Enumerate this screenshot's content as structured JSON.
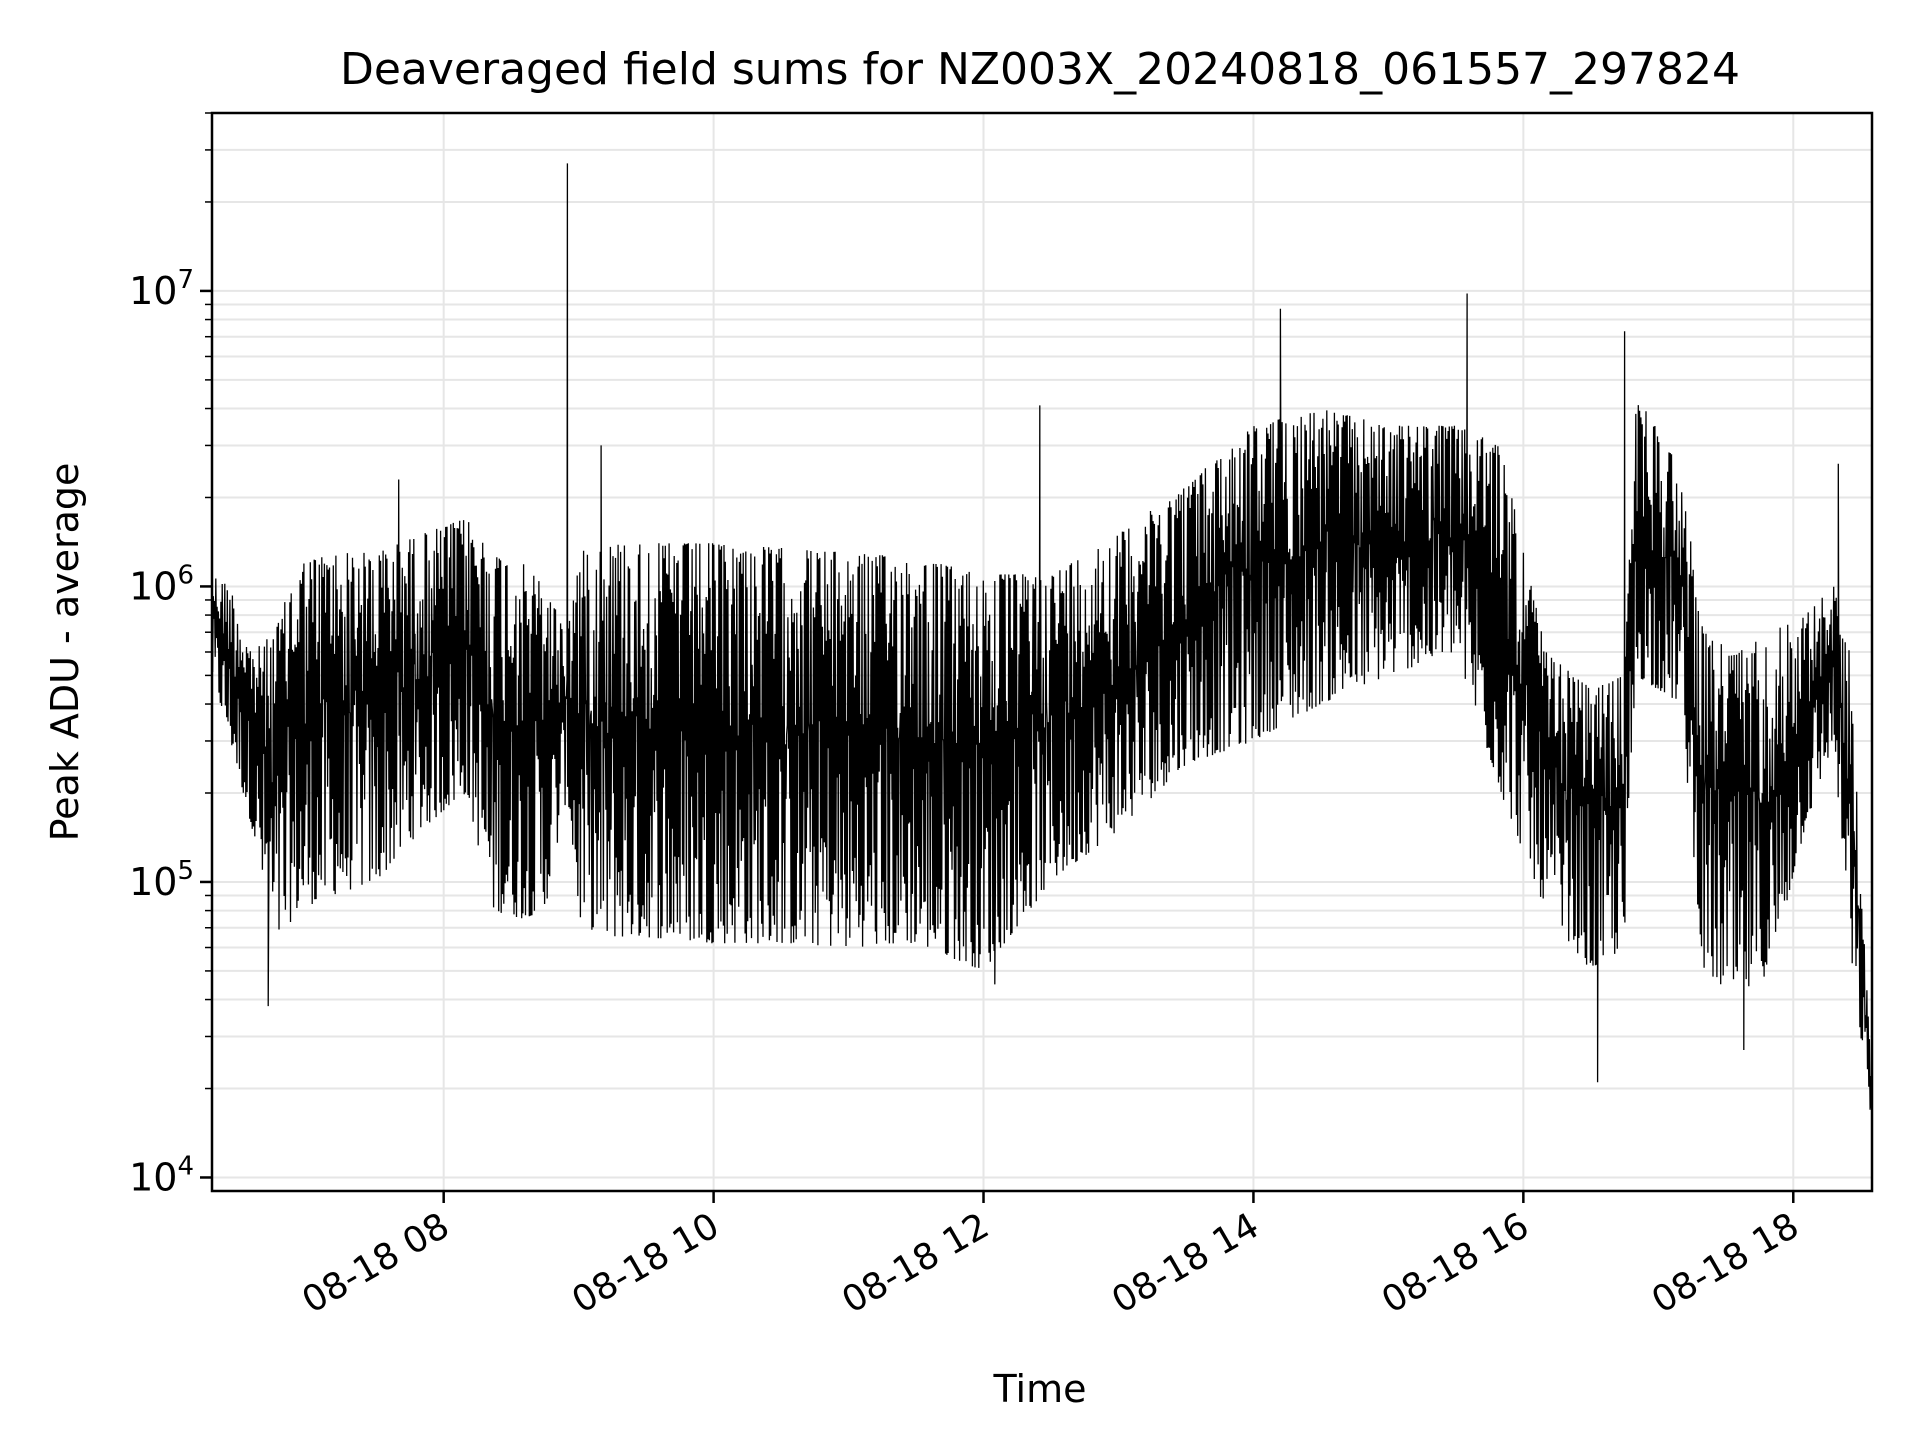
{
  "chart_data": {
    "type": "line",
    "title": "Deaveraged field sums for NZ003X_20240818_061557_297824",
    "xlabel": "Time",
    "ylabel": "Peak ADU - average",
    "yscale": "log",
    "ylim": [
      9000,
      40000000
    ],
    "xlim": [
      "2024-08-18 06:17",
      "2024-08-18 18:35"
    ],
    "grid": true,
    "line_color": "#000000",
    "grid_color": "#e6e6e6",
    "x_ticks": [
      {
        "value": "2024-08-18 08:00",
        "label": "08-18 08"
      },
      {
        "value": "2024-08-18 10:00",
        "label": "08-18 10"
      },
      {
        "value": "2024-08-18 12:00",
        "label": "08-18 12"
      },
      {
        "value": "2024-08-18 14:00",
        "label": "08-18 14"
      },
      {
        "value": "2024-08-18 16:00",
        "label": "08-18 16"
      },
      {
        "value": "2024-08-18 18:00",
        "label": "08-18 18"
      }
    ],
    "y_ticks": [
      {
        "value": 10000,
        "base": "10",
        "exp": "4"
      },
      {
        "value": 100000,
        "base": "10",
        "exp": "5"
      },
      {
        "value": 1000000,
        "base": "10",
        "exp": "6"
      },
      {
        "value": 10000000,
        "base": "10",
        "exp": "7"
      }
    ],
    "series": [
      {
        "x": [
          "2024-08-18 06:17",
          "2024-08-18 06:25",
          "2024-08-18 06:35",
          "2024-08-18 06:45",
          "2024-08-18 06:55",
          "2024-08-18 07:10",
          "2024-08-18 07:30",
          "2024-08-18 07:50",
          "2024-08-18 08:10",
          "2024-08-18 08:22",
          "2024-08-18 08:35",
          "2024-08-18 08:45",
          "2024-08-18 08:55",
          "2024-08-18 09:00",
          "2024-08-18 09:10",
          "2024-08-18 09:30",
          "2024-08-18 10:00",
          "2024-08-18 10:30",
          "2024-08-18 11:00",
          "2024-08-18 11:30",
          "2024-08-18 12:00",
          "2024-08-18 12:30",
          "2024-08-18 13:00",
          "2024-08-18 13:30",
          "2024-08-18 14:00",
          "2024-08-18 14:30",
          "2024-08-18 15:00",
          "2024-08-18 15:30",
          "2024-08-18 15:50",
          "2024-08-18 16:10",
          "2024-08-18 16:30",
          "2024-08-18 16:45",
          "2024-08-18 16:50",
          "2024-08-18 17:10",
          "2024-08-18 17:20",
          "2024-08-18 17:35",
          "2024-08-18 17:50",
          "2024-08-18 18:05",
          "2024-08-18 18:18",
          "2024-08-18 18:25",
          "2024-08-18 18:35"
        ],
        "high": [
          1100000,
          1000000,
          600000,
          700000,
          1200000,
          1300000,
          1300000,
          1500000,
          1700000,
          1300000,
          1200000,
          1000000,
          700000,
          1300000,
          1400000,
          1400000,
          1400000,
          1350000,
          1300000,
          1250000,
          1100000,
          1100000,
          1500000,
          2200000,
          3500000,
          4000000,
          3500000,
          3500000,
          3000000,
          600000,
          450000,
          500000,
          4500000,
          2500000,
          700000,
          600000,
          700000,
          800000,
          1000000,
          600000,
          20000
        ],
        "low": [
          500000,
          300000,
          150000,
          60000,
          80000,
          90000,
          100000,
          150000,
          200000,
          80000,
          75000,
          80000,
          200000,
          75000,
          65000,
          65000,
          62000,
          62000,
          60000,
          62000,
          50000,
          100000,
          150000,
          250000,
          300000,
          400000,
          500000,
          600000,
          200000,
          80000,
          50000,
          60000,
          500000,
          400000,
          50000,
          40000,
          50000,
          150000,
          300000,
          60000,
          15000
        ],
        "spikes": [
          {
            "x": "2024-08-18 06:42",
            "y": 38000
          },
          {
            "x": "2024-08-18 07:40",
            "y": 2300000
          },
          {
            "x": "2024-08-18 08:55",
            "y": 27000000
          },
          {
            "x": "2024-08-18 09:10",
            "y": 3000000
          },
          {
            "x": "2024-08-18 12:05",
            "y": 45000
          },
          {
            "x": "2024-08-18 12:25",
            "y": 4100000
          },
          {
            "x": "2024-08-18 14:12",
            "y": 8700000
          },
          {
            "x": "2024-08-18 15:35",
            "y": 9800000
          },
          {
            "x": "2024-08-18 16:33",
            "y": 21000
          },
          {
            "x": "2024-08-18 16:45",
            "y": 7300000
          },
          {
            "x": "2024-08-18 17:38",
            "y": 27000
          },
          {
            "x": "2024-08-18 18:20",
            "y": 2600000
          }
        ]
      }
    ]
  }
}
